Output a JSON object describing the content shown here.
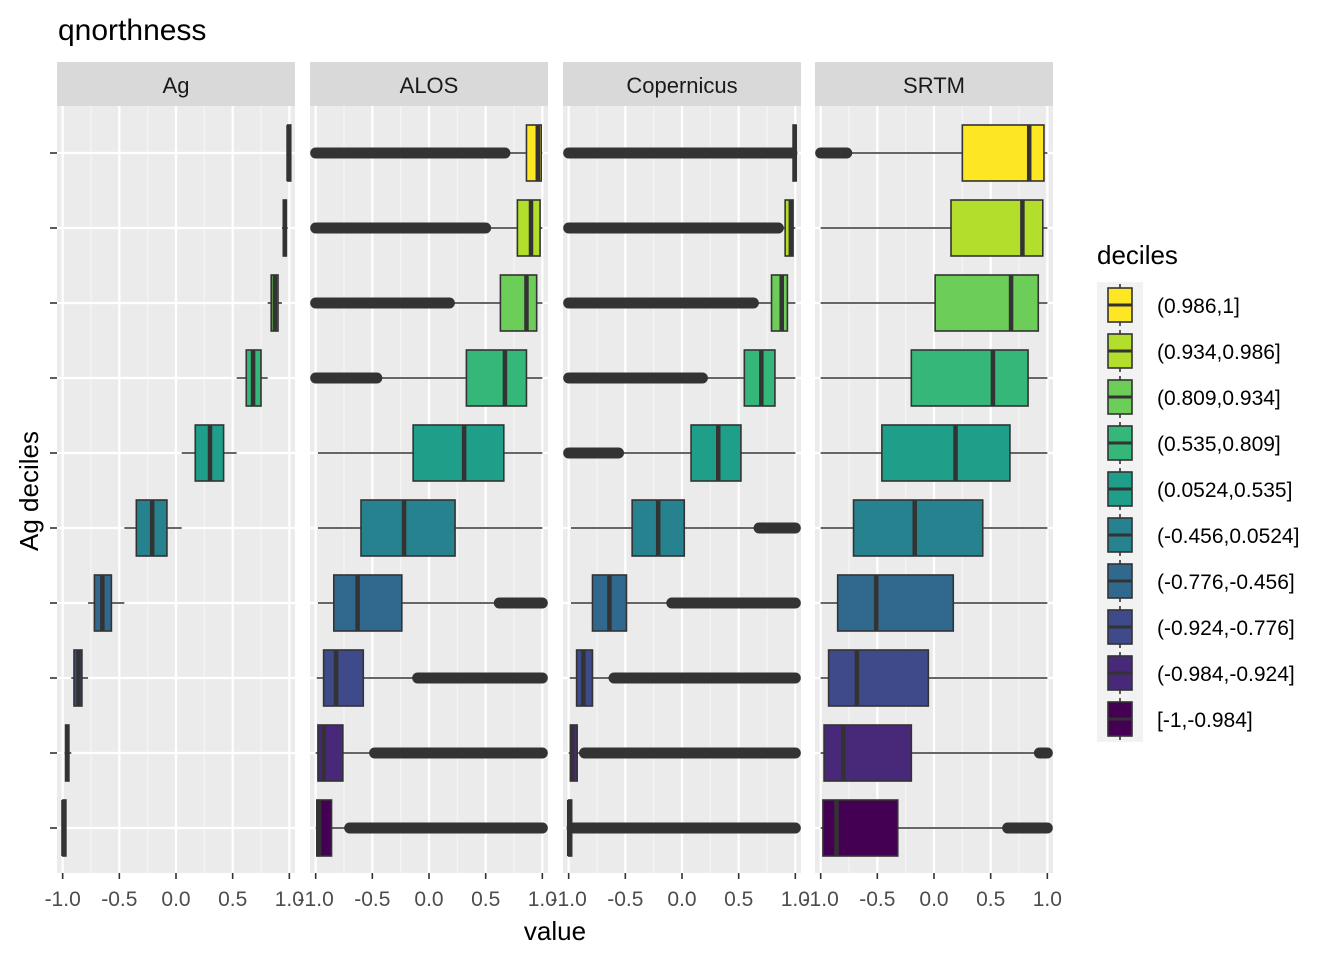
{
  "chart_data": {
    "type": "boxplot",
    "title": "qnorthness",
    "xlabel": "value",
    "ylabel": "Ag deciles",
    "xlim": [
      -1.05,
      1.05
    ],
    "x_ticks": [
      -1.0,
      -0.5,
      0.0,
      0.5,
      1.0
    ],
    "x_tick_labels": [
      "-1.0",
      "-0.5",
      "0.0",
      "0.5",
      "1.0"
    ],
    "panels": [
      "Ag",
      "ALOS",
      "Copernicus",
      "SRTM"
    ],
    "deciles": [
      "(0.986,1]",
      "(0.934,0.986]",
      "(0.809,0.934]",
      "(0.535,0.809]",
      "(0.0524,0.535]",
      "(-0.456,0.0524]",
      "(-0.776,-0.456]",
      "(-0.924,-0.776]",
      "(-0.984,-0.924]",
      "[-1,-0.984]"
    ],
    "colors": [
      "#FDE725",
      "#B4DE2C",
      "#6DCD59",
      "#35B779",
      "#1F9E89",
      "#26828E",
      "#31688E",
      "#3E4A89",
      "#482878",
      "#440154"
    ],
    "legend_title": "deciles",
    "legend_position": "right",
    "series": [
      {
        "name": "Ag",
        "boxes": [
          {
            "q1": 0.986,
            "median": 0.993,
            "q3": 0.999,
            "wlo": 0.986,
            "whi": 1.0,
            "out_lo": null,
            "out_hi": null
          },
          {
            "q1": 0.947,
            "median": 0.96,
            "q3": 0.973,
            "wlo": 0.934,
            "whi": 0.986,
            "out_lo": null,
            "out_hi": null
          },
          {
            "q1": 0.84,
            "median": 0.872,
            "q3": 0.9,
            "wlo": 0.809,
            "whi": 0.934,
            "out_lo": null,
            "out_hi": null
          },
          {
            "q1": 0.62,
            "median": 0.68,
            "q3": 0.75,
            "wlo": 0.535,
            "whi": 0.809,
            "out_lo": null,
            "out_hi": null
          },
          {
            "q1": 0.17,
            "median": 0.3,
            "q3": 0.42,
            "wlo": 0.05,
            "whi": 0.535,
            "out_lo": null,
            "out_hi": null
          },
          {
            "q1": -0.35,
            "median": -0.21,
            "q3": -0.08,
            "wlo": -0.456,
            "whi": 0.05,
            "out_lo": null,
            "out_hi": null
          },
          {
            "q1": -0.72,
            "median": -0.65,
            "q3": -0.57,
            "wlo": -0.776,
            "whi": -0.456,
            "out_lo": null,
            "out_hi": null
          },
          {
            "q1": -0.9,
            "median": -0.86,
            "q3": -0.83,
            "wlo": -0.924,
            "whi": -0.776,
            "out_lo": null,
            "out_hi": null
          },
          {
            "q1": -0.974,
            "median": -0.96,
            "q3": -0.945,
            "wlo": -0.984,
            "whi": -0.924,
            "out_lo": null,
            "out_hi": null
          },
          {
            "q1": -0.998,
            "median": -0.993,
            "q3": -0.988,
            "wlo": -1.0,
            "whi": -0.984,
            "out_lo": null,
            "out_hi": null
          }
        ]
      },
      {
        "name": "ALOS",
        "boxes": [
          {
            "q1": 0.86,
            "median": 0.96,
            "q3": 0.99,
            "wlo": 0.67,
            "whi": 1.0,
            "out_lo": [
              -1.0,
              0.67
            ],
            "out_hi": null
          },
          {
            "q1": 0.78,
            "median": 0.9,
            "q3": 0.98,
            "wlo": 0.5,
            "whi": 1.0,
            "out_lo": [
              -1.0,
              0.5
            ],
            "out_hi": null
          },
          {
            "q1": 0.63,
            "median": 0.86,
            "q3": 0.95,
            "wlo": 0.18,
            "whi": 1.0,
            "out_lo": [
              -1.0,
              0.18
            ],
            "out_hi": null
          },
          {
            "q1": 0.33,
            "median": 0.67,
            "q3": 0.86,
            "wlo": -0.46,
            "whi": 1.0,
            "out_lo": [
              -1.0,
              -0.46
            ],
            "out_hi": null
          },
          {
            "q1": -0.14,
            "median": 0.31,
            "q3": 0.66,
            "wlo": -0.98,
            "whi": 1.0,
            "out_lo": null,
            "out_hi": null
          },
          {
            "q1": -0.6,
            "median": -0.22,
            "q3": 0.23,
            "wlo": -0.98,
            "whi": 1.0,
            "out_lo": null,
            "out_hi": null
          },
          {
            "q1": -0.84,
            "median": -0.63,
            "q3": -0.24,
            "wlo": -0.98,
            "whi": 0.62,
            "out_lo": null,
            "out_hi": [
              0.62,
              1.0
            ]
          },
          {
            "q1": -0.93,
            "median": -0.82,
            "q3": -0.58,
            "wlo": -0.99,
            "whi": -0.1,
            "out_lo": null,
            "out_hi": [
              -0.1,
              1.0
            ]
          },
          {
            "q1": -0.98,
            "median": -0.93,
            "q3": -0.76,
            "wlo": -1.0,
            "whi": -0.48,
            "out_lo": null,
            "out_hi": [
              -0.48,
              1.0
            ]
          },
          {
            "q1": -0.99,
            "median": -0.97,
            "q3": -0.86,
            "wlo": -1.0,
            "whi": -0.7,
            "out_lo": null,
            "out_hi": [
              -0.7,
              1.0
            ]
          }
        ]
      },
      {
        "name": "Copernicus",
        "boxes": [
          {
            "q1": 0.98,
            "median": 0.995,
            "q3": 1.0,
            "wlo": 0.97,
            "whi": 1.0,
            "out_lo": [
              -1.0,
              0.97
            ],
            "out_hi": null
          },
          {
            "q1": 0.91,
            "median": 0.96,
            "q3": 0.98,
            "wlo": 0.85,
            "whi": 1.0,
            "out_lo": [
              -1.0,
              0.85
            ],
            "out_hi": null
          },
          {
            "q1": 0.79,
            "median": 0.88,
            "q3": 0.93,
            "wlo": 0.63,
            "whi": 1.0,
            "out_lo": [
              -1.0,
              0.63
            ],
            "out_hi": null
          },
          {
            "q1": 0.55,
            "median": 0.7,
            "q3": 0.82,
            "wlo": 0.18,
            "whi": 1.0,
            "out_lo": [
              -1.0,
              0.18
            ],
            "out_hi": null
          },
          {
            "q1": 0.08,
            "median": 0.32,
            "q3": 0.52,
            "wlo": -0.56,
            "whi": 1.0,
            "out_lo": [
              -1.0,
              -0.56
            ],
            "out_hi": null
          },
          {
            "q1": -0.44,
            "median": -0.21,
            "q3": 0.02,
            "wlo": -0.98,
            "whi": 0.68,
            "out_lo": null,
            "out_hi": [
              0.68,
              1.0
            ]
          },
          {
            "q1": -0.79,
            "median": -0.64,
            "q3": -0.49,
            "wlo": -0.98,
            "whi": -0.09,
            "out_lo": null,
            "out_hi": [
              -0.09,
              1.0
            ]
          },
          {
            "q1": -0.93,
            "median": -0.87,
            "q3": -0.79,
            "wlo": -0.99,
            "whi": -0.6,
            "out_lo": null,
            "out_hi": [
              -0.6,
              1.0
            ]
          },
          {
            "q1": -0.985,
            "median": -0.97,
            "q3": -0.925,
            "wlo": -1.0,
            "whi": -0.86,
            "out_lo": null,
            "out_hi": [
              -0.86,
              1.0
            ]
          },
          {
            "q1": -1.0,
            "median": -0.995,
            "q3": -0.985,
            "wlo": -1.0,
            "whi": -0.97,
            "out_lo": null,
            "out_hi": [
              -0.97,
              1.0
            ]
          }
        ]
      },
      {
        "name": "SRTM",
        "boxes": [
          {
            "q1": 0.25,
            "median": 0.84,
            "q3": 0.97,
            "wlo": -0.77,
            "whi": 1.0,
            "out_lo": [
              -1.0,
              -0.77
            ],
            "out_hi": null
          },
          {
            "q1": 0.15,
            "median": 0.78,
            "q3": 0.96,
            "wlo": -1.0,
            "whi": 1.0,
            "out_lo": null,
            "out_hi": null
          },
          {
            "q1": 0.01,
            "median": 0.68,
            "q3": 0.92,
            "wlo": -1.0,
            "whi": 1.0,
            "out_lo": null,
            "out_hi": null
          },
          {
            "q1": -0.2,
            "median": 0.52,
            "q3": 0.83,
            "wlo": -1.0,
            "whi": 1.0,
            "out_lo": null,
            "out_hi": null
          },
          {
            "q1": -0.46,
            "median": 0.19,
            "q3": 0.67,
            "wlo": -1.0,
            "whi": 1.0,
            "out_lo": null,
            "out_hi": null
          },
          {
            "q1": -0.71,
            "median": -0.17,
            "q3": 0.43,
            "wlo": -1.0,
            "whi": 1.0,
            "out_lo": null,
            "out_hi": null
          },
          {
            "q1": -0.85,
            "median": -0.51,
            "q3": 0.17,
            "wlo": -1.0,
            "whi": 1.0,
            "out_lo": null,
            "out_hi": null
          },
          {
            "q1": -0.93,
            "median": -0.68,
            "q3": -0.05,
            "wlo": -1.0,
            "whi": 1.0,
            "out_lo": null,
            "out_hi": null
          },
          {
            "q1": -0.97,
            "median": -0.8,
            "q3": -0.2,
            "wlo": -1.0,
            "whi": 0.93,
            "out_lo": null,
            "out_hi": [
              0.93,
              1.0
            ]
          },
          {
            "q1": -0.98,
            "median": -0.86,
            "q3": -0.32,
            "wlo": -1.0,
            "whi": 0.65,
            "out_lo": null,
            "out_hi": [
              0.65,
              1.0
            ]
          }
        ]
      }
    ]
  }
}
